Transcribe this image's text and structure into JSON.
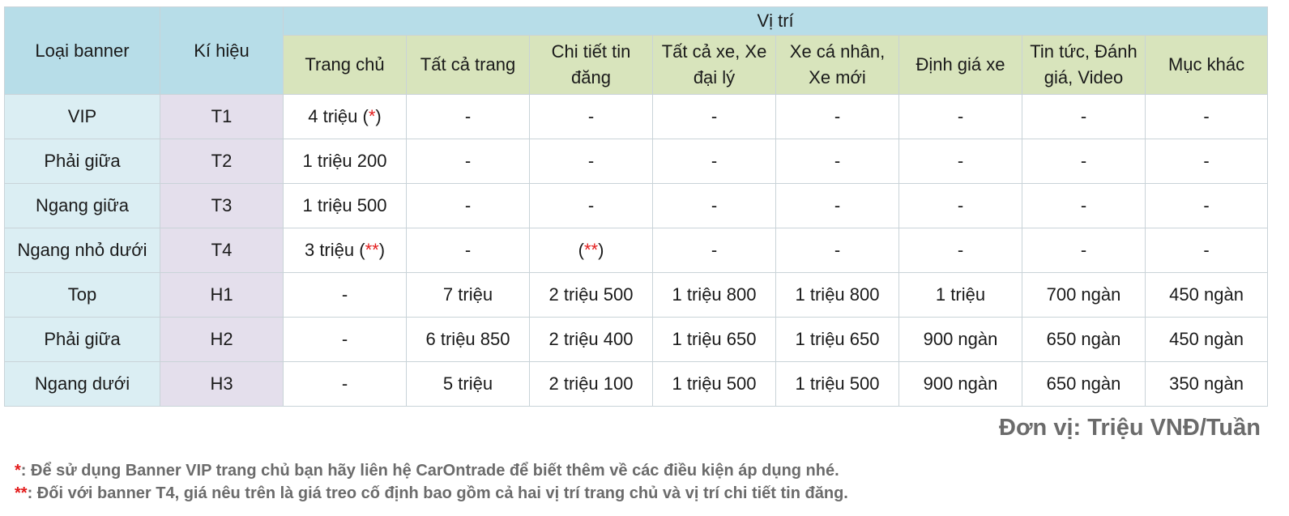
{
  "header": {
    "col_type": "Loại banner",
    "col_code": "Kí hiệu",
    "col_position_group": "Vị trí",
    "positions": [
      "Trang chủ",
      "Tất cả trang",
      "Chi tiết tin đăng",
      "Tất cả xe, Xe đại lý",
      "Xe cá nhân, Xe mới",
      "Định giá xe",
      "Tin tức, Đánh giá, Video",
      "Mục khác"
    ]
  },
  "rows": [
    {
      "type": "VIP",
      "code": "T1",
      "values": [
        {
          "text": "4 triệu (",
          "mark": "*",
          "tail": ")"
        },
        {
          "text": "-"
        },
        {
          "text": "-"
        },
        {
          "text": "-"
        },
        {
          "text": "-"
        },
        {
          "text": "-"
        },
        {
          "text": "-"
        },
        {
          "text": "-"
        }
      ]
    },
    {
      "type": "Phải giữa",
      "code": "T2",
      "values": [
        {
          "text": "1 triệu 200"
        },
        {
          "text": "-"
        },
        {
          "text": "-"
        },
        {
          "text": "-"
        },
        {
          "text": "-"
        },
        {
          "text": "-"
        },
        {
          "text": "-"
        },
        {
          "text": "-"
        }
      ]
    },
    {
      "type": "Ngang giữa",
      "code": "T3",
      "values": [
        {
          "text": "1 triệu 500"
        },
        {
          "text": "-"
        },
        {
          "text": "-"
        },
        {
          "text": "-"
        },
        {
          "text": "-"
        },
        {
          "text": "-"
        },
        {
          "text": "-"
        },
        {
          "text": "-"
        }
      ]
    },
    {
      "type": "Ngang nhỏ dưới",
      "code": "T4",
      "values": [
        {
          "text": "3 triệu (",
          "mark": "**",
          "tail": ")"
        },
        {
          "text": "-"
        },
        {
          "text": "(",
          "mark": "**",
          "tail": ")"
        },
        {
          "text": "-"
        },
        {
          "text": "-"
        },
        {
          "text": "-"
        },
        {
          "text": "-"
        },
        {
          "text": "-"
        }
      ]
    },
    {
      "type": "Top",
      "code": "H1",
      "values": [
        {
          "text": "-"
        },
        {
          "text": "7 triệu"
        },
        {
          "text": "2 triệu 500"
        },
        {
          "text": "1 triệu 800"
        },
        {
          "text": "1 triệu 800"
        },
        {
          "text": "1 triệu"
        },
        {
          "text": "700 ngàn"
        },
        {
          "text": "450 ngàn"
        }
      ]
    },
    {
      "type": "Phải giữa",
      "code": "H2",
      "values": [
        {
          "text": "-"
        },
        {
          "text": "6 triệu 850"
        },
        {
          "text": "2 triệu 400"
        },
        {
          "text": "1 triệu 650"
        },
        {
          "text": "1 triệu 650"
        },
        {
          "text": "900 ngàn"
        },
        {
          "text": "650 ngàn"
        },
        {
          "text": "450 ngàn"
        }
      ]
    },
    {
      "type": "Ngang dưới",
      "code": "H3",
      "values": [
        {
          "text": "-"
        },
        {
          "text": "5 triệu"
        },
        {
          "text": "2 triệu 100"
        },
        {
          "text": "1 triệu 500"
        },
        {
          "text": "1 triệu 500"
        },
        {
          "text": "900 ngàn"
        },
        {
          "text": "650 ngàn"
        },
        {
          "text": "350 ngàn"
        }
      ]
    }
  ],
  "unit_label": "Đơn vị: Triệu VNĐ/Tuần",
  "notes": [
    {
      "mark": "*",
      "text": ": Để sử dụng Banner VIP trang chủ bạn hãy liên hệ CarOntrade để biết thêm về các điều kiện áp dụng nhé."
    },
    {
      "mark": "**",
      "text": ": Đối với banner T4, giá nêu trên là giá treo cố định bao gồm cả hai vị trí trang chủ và vị trí chi tiết tin đăng."
    }
  ],
  "colors": {
    "header_blue": "#b7dde8",
    "header_green": "#d8e4bc",
    "type_column": "#dbeef3",
    "code_column": "#e4dfec",
    "asterisk_red": "#e31b1b",
    "note_gray": "#6b6b6b"
  }
}
